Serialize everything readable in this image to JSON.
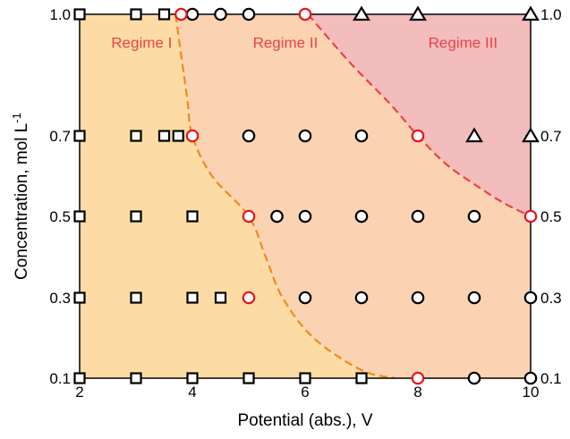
{
  "chart_data": {
    "type": "scatter",
    "xlabel": "Potential (abs.), V",
    "ylabel_main": "Concentration, mol L",
    "ylabel_sup": "-1",
    "xlim": [
      2,
      10
    ],
    "ylim": [
      0.1,
      1.0
    ],
    "x_ticks": [
      2,
      4,
      6,
      8,
      10
    ],
    "x_tick_labels": [
      "2",
      "4",
      "6",
      "8",
      "10"
    ],
    "y_ticks": [
      0.1,
      0.3,
      0.5,
      0.7,
      1.0
    ],
    "y_tick_labels": [
      "0.1",
      "0.3",
      "0.5",
      "0.7",
      "1.0"
    ],
    "y_axis_nonlinear": true,
    "mirror_y_tick_labels": true,
    "grid": false,
    "colors": {
      "regime1_fill": "#fcdca4",
      "regime2_fill": "#fbd3b2",
      "regime3_fill": "#f3bcbd",
      "boundary_orange": "#f08a1e",
      "boundary_red": "#e84545",
      "transition_marker": "#e8131b",
      "marker": "#000000",
      "regime_text": "#e84545"
    },
    "regimes": [
      {
        "label": "Regime I",
        "x": 3.1,
        "y": 0.93
      },
      {
        "label": "Regime II",
        "x": 5.65,
        "y": 0.93
      },
      {
        "label": "Regime III",
        "x": 8.8,
        "y": 0.93
      }
    ],
    "boundaries": [
      {
        "name": "I-II",
        "color": "boundary_orange",
        "points": [
          [
            3.7,
            1.0
          ],
          [
            3.9,
            0.8
          ],
          [
            4.0,
            0.7
          ],
          [
            4.35,
            0.6
          ],
          [
            5.0,
            0.5
          ],
          [
            5.3,
            0.4
          ],
          [
            5.6,
            0.3
          ],
          [
            6.15,
            0.2
          ],
          [
            7.0,
            0.12
          ],
          [
            7.6,
            0.1
          ]
        ]
      },
      {
        "name": "II-III",
        "color": "boundary_red",
        "points": [
          [
            6.05,
            1.0
          ],
          [
            6.8,
            0.88
          ],
          [
            7.5,
            0.78
          ],
          [
            8.0,
            0.7
          ],
          [
            8.5,
            0.63
          ],
          [
            9.0,
            0.58
          ],
          [
            9.5,
            0.535
          ],
          [
            10.0,
            0.5
          ]
        ]
      }
    ],
    "series": [
      {
        "name": "square",
        "marker": "square",
        "points": [
          [
            2,
            1.0
          ],
          [
            3,
            1.0
          ],
          [
            3.5,
            1.0
          ],
          [
            2,
            0.7
          ],
          [
            3,
            0.7
          ],
          [
            3.5,
            0.7
          ],
          [
            3.75,
            0.7
          ],
          [
            2,
            0.5
          ],
          [
            3,
            0.5
          ],
          [
            4,
            0.5
          ],
          [
            2,
            0.3
          ],
          [
            3,
            0.3
          ],
          [
            4,
            0.3
          ],
          [
            4.5,
            0.3
          ],
          [
            2,
            0.1
          ],
          [
            3,
            0.1
          ],
          [
            4,
            0.1
          ],
          [
            5,
            0.1
          ],
          [
            6,
            0.1
          ],
          [
            7,
            0.1
          ]
        ]
      },
      {
        "name": "circle",
        "marker": "circle",
        "points": [
          [
            4,
            1.0
          ],
          [
            4.5,
            1.0
          ],
          [
            5,
            1.0
          ],
          [
            5,
            0.7
          ],
          [
            6,
            0.7
          ],
          [
            7,
            0.7
          ],
          [
            5.5,
            0.5
          ],
          [
            6,
            0.5
          ],
          [
            7,
            0.5
          ],
          [
            8,
            0.5
          ],
          [
            9,
            0.5
          ],
          [
            6,
            0.3
          ],
          [
            7,
            0.3
          ],
          [
            8,
            0.3
          ],
          [
            9,
            0.3
          ],
          [
            10,
            0.3
          ],
          [
            9,
            0.1
          ],
          [
            10,
            0.1
          ]
        ]
      },
      {
        "name": "transition",
        "marker": "circle-red",
        "points": [
          [
            3.8,
            1.0
          ],
          [
            6,
            1.0
          ],
          [
            4,
            0.7
          ],
          [
            8,
            0.7
          ],
          [
            5,
            0.5
          ],
          [
            10,
            0.5
          ],
          [
            5,
            0.3
          ],
          [
            8,
            0.1
          ]
        ]
      },
      {
        "name": "triangle",
        "marker": "triangle",
        "points": [
          [
            7,
            1.0
          ],
          [
            8,
            1.0
          ],
          [
            10,
            1.0
          ],
          [
            9,
            0.7
          ],
          [
            10,
            0.7
          ]
        ]
      }
    ]
  }
}
